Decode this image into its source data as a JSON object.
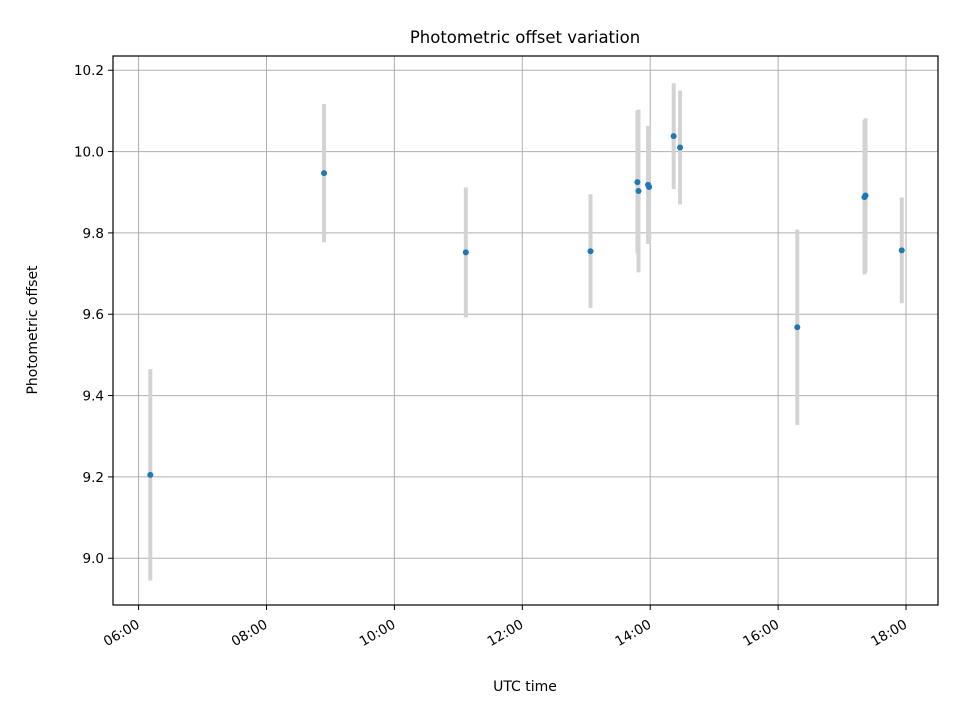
{
  "chart_data": {
    "type": "scatter",
    "title": "Photometric offset variation",
    "xlabel": "UTC time",
    "ylabel": "Photometric offset",
    "xlim": [
      "05:36",
      "18:30"
    ],
    "ylim": [
      8.885,
      10.235
    ],
    "x_ticks": [
      "06:00",
      "08:00",
      "10:00",
      "12:00",
      "14:00",
      "16:00",
      "18:00"
    ],
    "y_ticks": [
      "9.0",
      "9.2",
      "9.4",
      "9.6",
      "9.8",
      "10.0",
      "10.2"
    ],
    "grid": true,
    "colors": {
      "point": "#1f77b4",
      "errorbar": "#d3d3d3",
      "grid": "#b0b0b0"
    },
    "points": [
      {
        "x": "06:11",
        "y": 9.205,
        "err": 0.26
      },
      {
        "x": "08:54",
        "y": 9.947,
        "err": 0.17
      },
      {
        "x": "11:07",
        "y": 9.752,
        "err": 0.16
      },
      {
        "x": "13:04",
        "y": 9.755,
        "err": 0.14
      },
      {
        "x": "13:48",
        "y": 9.925,
        "err": 0.175
      },
      {
        "x": "13:49",
        "y": 9.903,
        "err": 0.2
      },
      {
        "x": "13:58",
        "y": 9.918,
        "err": 0.145
      },
      {
        "x": "13:59",
        "y": 9.913,
        "err": 0.14
      },
      {
        "x": "14:22",
        "y": 10.038,
        "err": 0.13
      },
      {
        "x": "14:28",
        "y": 10.01,
        "err": 0.14
      },
      {
        "x": "16:18",
        "y": 9.568,
        "err": 0.24
      },
      {
        "x": "17:21",
        "y": 9.888,
        "err": 0.19
      },
      {
        "x": "17:22",
        "y": 9.892,
        "err": 0.19
      },
      {
        "x": "17:56",
        "y": 9.757,
        "err": 0.13
      }
    ]
  }
}
